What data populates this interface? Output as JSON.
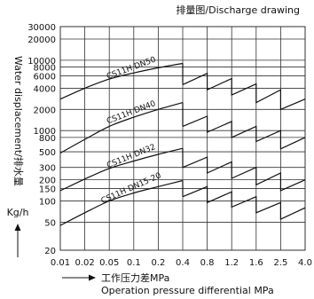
{
  "chart_data": {
    "type": "line",
    "title": "排量图/Discharge drawing",
    "ylabel": "Water displacement/排水量",
    "yunit": "Kg/h",
    "xlabel_cn": "工作压力差MPa",
    "xlabel_en": "Operation pressure differential MPa",
    "x_ticks": [
      0.01,
      0.02,
      0.05,
      0.1,
      0.2,
      0.4,
      0.8,
      1.2,
      1.6,
      2.5,
      4.0
    ],
    "x_tick_labels": [
      "0.01",
      "0.02",
      "0.05",
      "0.1",
      "0.2",
      "0.4",
      "0.8",
      "1.2",
      "1.6",
      "2.5",
      "4.0"
    ],
    "y_ticks": [
      20,
      50,
      100,
      150,
      200,
      300,
      500,
      800,
      1000,
      2000,
      4000,
      6000,
      8000,
      10000,
      20000,
      30000
    ],
    "y_tick_labels": [
      "20",
      "50",
      "100",
      "150",
      "200",
      "300",
      "500",
      "800",
      "1000",
      "2000",
      "4000",
      "6000",
      "8000",
      "10000",
      "20000",
      "30000"
    ],
    "grid": true,
    "series": [
      {
        "name": "CS11H DN50",
        "smooth": [
          [
            0.01,
            2800
          ],
          [
            0.02,
            4000
          ],
          [
            0.05,
            5400
          ],
          [
            0.1,
            6600
          ],
          [
            0.2,
            7800
          ],
          [
            0.4,
            9000
          ]
        ],
        "drop": [
          0.4,
          4500
        ],
        "sawtooth": [
          [
            0.4,
            4500
          ],
          [
            0.8,
            6500
          ],
          [
            0.8,
            3800
          ],
          [
            1.2,
            5500
          ],
          [
            1.2,
            3200
          ],
          [
            1.6,
            4600
          ],
          [
            1.6,
            2500
          ],
          [
            2.5,
            3800
          ],
          [
            2.5,
            2000
          ],
          [
            4.0,
            2800
          ]
        ]
      },
      {
        "name": "CS11H DN40",
        "smooth": [
          [
            0.01,
            480
          ],
          [
            0.02,
            750
          ],
          [
            0.05,
            1150
          ],
          [
            0.1,
            1550
          ],
          [
            0.2,
            2000
          ],
          [
            0.4,
            2500
          ]
        ],
        "drop": [
          0.4,
          1150
        ],
        "sawtooth": [
          [
            0.4,
            1150
          ],
          [
            0.8,
            1600
          ],
          [
            0.8,
            950
          ],
          [
            1.2,
            1350
          ],
          [
            1.2,
            800
          ],
          [
            1.6,
            1150
          ],
          [
            1.6,
            700
          ],
          [
            2.5,
            1000
          ],
          [
            2.5,
            550
          ],
          [
            4.0,
            800
          ]
        ]
      },
      {
        "name": "CS11H DN32",
        "smooth": [
          [
            0.01,
            140
          ],
          [
            0.02,
            205
          ],
          [
            0.05,
            290
          ],
          [
            0.1,
            370
          ],
          [
            0.2,
            460
          ],
          [
            0.4,
            560
          ]
        ],
        "drop": [
          0.4,
          300
        ],
        "sawtooth": [
          [
            0.4,
            300
          ],
          [
            0.8,
            420
          ],
          [
            0.8,
            250
          ],
          [
            1.2,
            360
          ],
          [
            1.2,
            210
          ],
          [
            1.6,
            300
          ],
          [
            1.6,
            170
          ],
          [
            2.5,
            250
          ],
          [
            2.5,
            140
          ],
          [
            4.0,
            200
          ]
        ]
      },
      {
        "name": "CS11H DN15-20",
        "smooth": [
          [
            0.01,
            45
          ],
          [
            0.02,
            68
          ],
          [
            0.05,
            100
          ],
          [
            0.1,
            130
          ],
          [
            0.2,
            160
          ],
          [
            0.4,
            195
          ]
        ],
        "drop": [
          0.4,
          115
        ],
        "sawtooth": [
          [
            0.4,
            115
          ],
          [
            0.8,
            160
          ],
          [
            0.8,
            95
          ],
          [
            1.2,
            135
          ],
          [
            1.2,
            82
          ],
          [
            1.6,
            115
          ],
          [
            1.6,
            68
          ],
          [
            2.5,
            95
          ],
          [
            2.5,
            55
          ],
          [
            4.0,
            80
          ]
        ]
      }
    ],
    "colors": {
      "line": "#111111",
      "grid": "#333333",
      "background": "#ffffff"
    }
  }
}
